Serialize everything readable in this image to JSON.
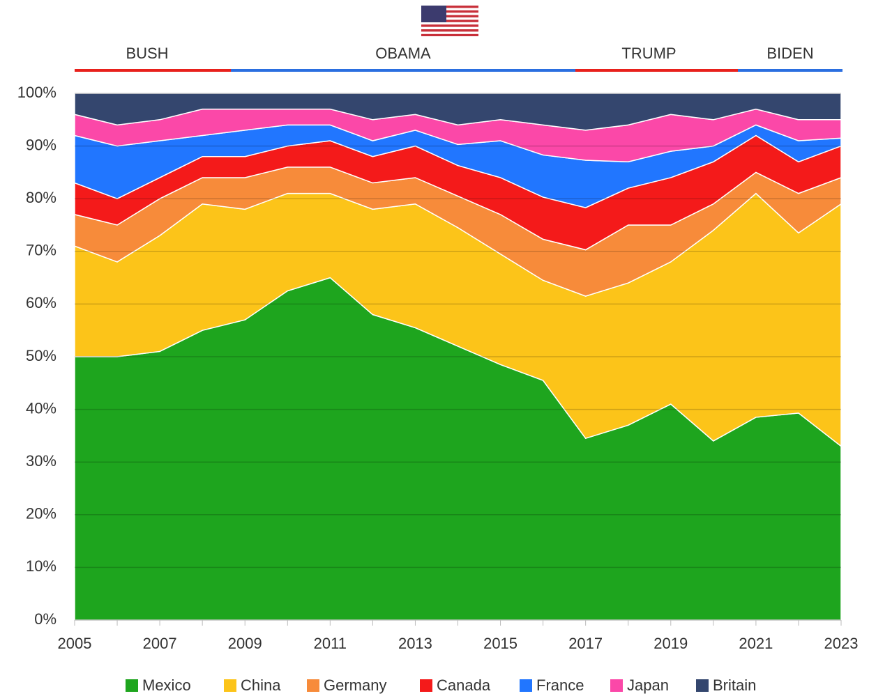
{
  "chart_data": {
    "type": "stacked_area",
    "annotations": [
      {
        "text": "BUSH",
        "color": "#e8211c"
      },
      {
        "text": "OBAMA",
        "color": "#2b6fe0"
      },
      {
        "text": "TRUMP",
        "color": "#e8211c"
      },
      {
        "text": "BIDEN",
        "color": "#2b6fe0"
      }
    ],
    "x": [
      2005,
      2006,
      2007,
      2008,
      2009,
      2010,
      2011,
      2012,
      2013,
      2014,
      2015,
      2016,
      2017,
      2018,
      2019,
      2020,
      2021,
      2022,
      2023
    ],
    "xlim": [
      2005,
      2023
    ],
    "xticks": [
      2005,
      2007,
      2009,
      2011,
      2013,
      2015,
      2017,
      2019,
      2021,
      2023
    ],
    "ylim": [
      0,
      100
    ],
    "yticks": [
      {
        "value": 0,
        "label": "0%"
      },
      {
        "value": 10,
        "label": "10%"
      },
      {
        "value": 20,
        "label": "20%"
      },
      {
        "value": 30,
        "label": "30%"
      },
      {
        "value": 40,
        "label": "40%"
      },
      {
        "value": 50,
        "label": "50%"
      },
      {
        "value": 60,
        "label": "60%"
      },
      {
        "value": 70,
        "label": "70%"
      },
      {
        "value": 80,
        "label": "80%"
      },
      {
        "value": 90,
        "label": "90%"
      },
      {
        "value": 100,
        "label": "100%"
      }
    ],
    "grid": true,
    "legend": "bottom",
    "series": [
      {
        "name": "Mexico",
        "color": "#1ea51e",
        "values": [
          50,
          50,
          51,
          55,
          57,
          62.5,
          65,
          58,
          55.5,
          52,
          48.5,
          45.5,
          34.5,
          37,
          41,
          34,
          38.5,
          39.3,
          33
        ]
      },
      {
        "name": "China",
        "color": "#fcc419",
        "values": [
          21,
          18,
          22,
          24,
          21,
          18.5,
          16,
          20,
          23.5,
          22.5,
          21,
          19,
          27,
          27,
          27,
          40,
          42.5,
          34.2,
          46
        ]
      },
      {
        "name": "Germany",
        "color": "#f78b3a",
        "values": [
          6,
          7,
          7,
          5,
          6,
          5,
          5,
          5,
          5,
          6,
          7.5,
          7.8,
          8.8,
          11,
          7,
          5,
          4,
          7.5,
          5
        ]
      },
      {
        "name": "Canada",
        "color": "#f41a1a",
        "values": [
          6,
          5,
          4,
          4,
          4,
          4,
          5,
          5,
          6,
          5.8,
          7,
          8,
          8,
          7,
          9,
          8,
          7,
          6,
          6
        ]
      },
      {
        "name": "France",
        "color": "#2176ff",
        "values": [
          9,
          10,
          7,
          4,
          5,
          4,
          3,
          3,
          3,
          4,
          7,
          8,
          9,
          5,
          5,
          3,
          2,
          4,
          1.5
        ]
      },
      {
        "name": "Japan",
        "color": "#fb48a8",
        "values": [
          4,
          4,
          4,
          5,
          4,
          3,
          3,
          4,
          3,
          3.7,
          4,
          5.7,
          5.7,
          7,
          7,
          5,
          3,
          4,
          3.5
        ]
      },
      {
        "name": "Britain",
        "color": "#34466e",
        "values": [
          4,
          6,
          5,
          3,
          3,
          3,
          3,
          5,
          4,
          6,
          5,
          6,
          7,
          6,
          4,
          5,
          3,
          5,
          5
        ]
      }
    ]
  }
}
